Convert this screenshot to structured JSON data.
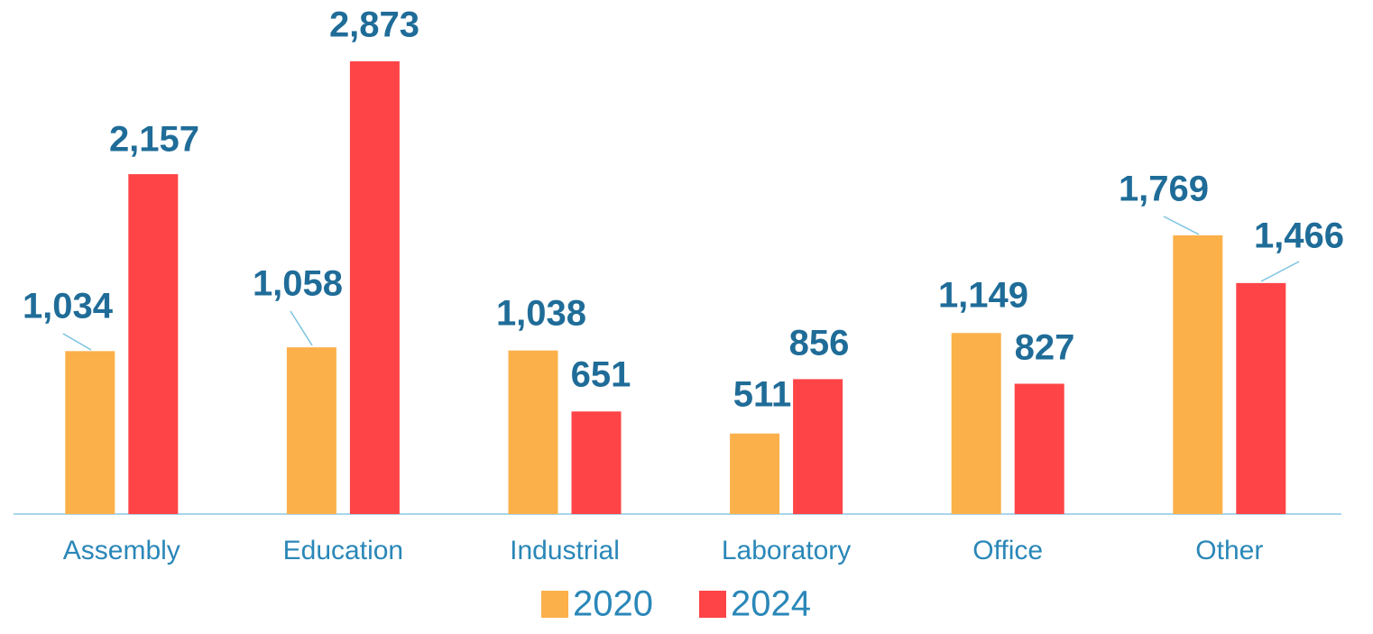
{
  "chart_data": {
    "type": "bar",
    "categories": [
      "Assembly",
      "Education",
      "Industrial",
      "Laboratory",
      "Office",
      "Other"
    ],
    "series": [
      {
        "name": "2020",
        "color": "#fbb04a",
        "values": [
          1034,
          1058,
          1038,
          511,
          1149,
          1769
        ],
        "value_labels": [
          "1,034",
          "1,058",
          "1,038",
          "511",
          "1,149",
          "1,769"
        ]
      },
      {
        "name": "2024",
        "color": "#fe4447",
        "values": [
          2157,
          2873,
          651,
          856,
          827,
          1466
        ],
        "value_labels": [
          "2,157",
          "2,873",
          "651",
          "856",
          "827",
          "1,466"
        ]
      }
    ],
    "legend": "bottom"
  }
}
